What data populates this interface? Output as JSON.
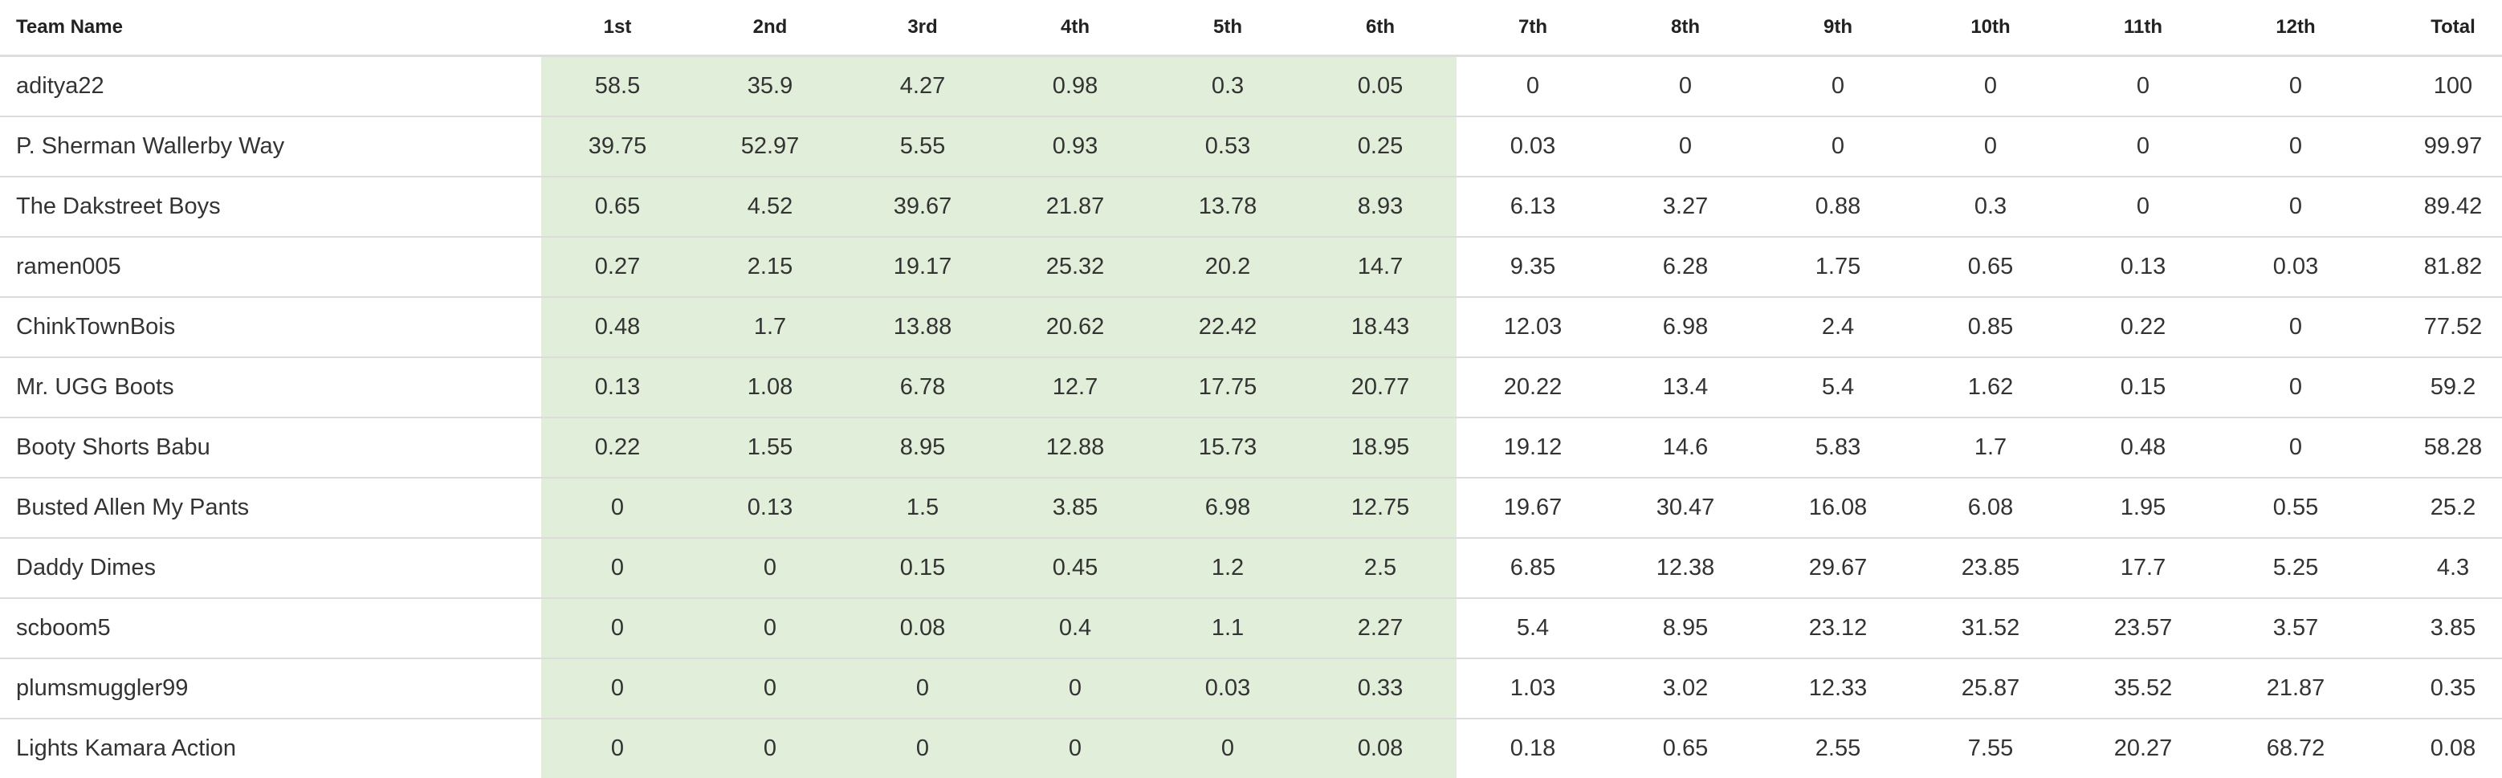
{
  "table": {
    "columns": [
      "Team Name",
      "1st",
      "2nd",
      "3rd",
      "4th",
      "5th",
      "6th",
      "7th",
      "8th",
      "9th",
      "10th",
      "11th",
      "12th",
      "Total"
    ],
    "highlight_color": "#e1efda",
    "rows": [
      {
        "team": "aditya22",
        "values": [
          "58.5",
          "35.9",
          "4.27",
          "0.98",
          "0.3",
          "0.05",
          "0",
          "0",
          "0",
          "0",
          "0",
          "0",
          "100"
        ]
      },
      {
        "team": "P. Sherman Wallerby Way",
        "values": [
          "39.75",
          "52.97",
          "5.55",
          "0.93",
          "0.53",
          "0.25",
          "0.03",
          "0",
          "0",
          "0",
          "0",
          "0",
          "99.97"
        ]
      },
      {
        "team": "The Dakstreet Boys",
        "values": [
          "0.65",
          "4.52",
          "39.67",
          "21.87",
          "13.78",
          "8.93",
          "6.13",
          "3.27",
          "0.88",
          "0.3",
          "0",
          "0",
          "89.42"
        ]
      },
      {
        "team": "ramen005",
        "values": [
          "0.27",
          "2.15",
          "19.17",
          "25.32",
          "20.2",
          "14.7",
          "9.35",
          "6.28",
          "1.75",
          "0.65",
          "0.13",
          "0.03",
          "81.82"
        ]
      },
      {
        "team": "ChinkTownBois",
        "values": [
          "0.48",
          "1.7",
          "13.88",
          "20.62",
          "22.42",
          "18.43",
          "12.03",
          "6.98",
          "2.4",
          "0.85",
          "0.22",
          "0",
          "77.52"
        ]
      },
      {
        "team": "Mr. UGG Boots",
        "values": [
          "0.13",
          "1.08",
          "6.78",
          "12.7",
          "17.75",
          "20.77",
          "20.22",
          "13.4",
          "5.4",
          "1.62",
          "0.15",
          "0",
          "59.2"
        ]
      },
      {
        "team": "Booty Shorts Babu",
        "values": [
          "0.22",
          "1.55",
          "8.95",
          "12.88",
          "15.73",
          "18.95",
          "19.12",
          "14.6",
          "5.83",
          "1.7",
          "0.48",
          "0",
          "58.28"
        ]
      },
      {
        "team": "Busted Allen My Pants",
        "values": [
          "0",
          "0.13",
          "1.5",
          "3.85",
          "6.98",
          "12.75",
          "19.67",
          "30.47",
          "16.08",
          "6.08",
          "1.95",
          "0.55",
          "25.2"
        ]
      },
      {
        "team": "Daddy Dimes",
        "values": [
          "0",
          "0",
          "0.15",
          "0.45",
          "1.2",
          "2.5",
          "6.85",
          "12.38",
          "29.67",
          "23.85",
          "17.7",
          "5.25",
          "4.3"
        ]
      },
      {
        "team": "scboom5",
        "values": [
          "0",
          "0",
          "0.08",
          "0.4",
          "1.1",
          "2.27",
          "5.4",
          "8.95",
          "23.12",
          "31.52",
          "23.57",
          "3.57",
          "3.85"
        ]
      },
      {
        "team": "plumsmuggler99",
        "values": [
          "0",
          "0",
          "0",
          "0",
          "0.03",
          "0.33",
          "1.03",
          "3.02",
          "12.33",
          "25.87",
          "35.52",
          "21.87",
          "0.35"
        ]
      },
      {
        "team": "Lights Kamara Action",
        "values": [
          "0",
          "0",
          "0",
          "0",
          "0",
          "0.08",
          "0.18",
          "0.65",
          "2.55",
          "7.55",
          "20.27",
          "68.72",
          "0.08"
        ]
      }
    ]
  }
}
